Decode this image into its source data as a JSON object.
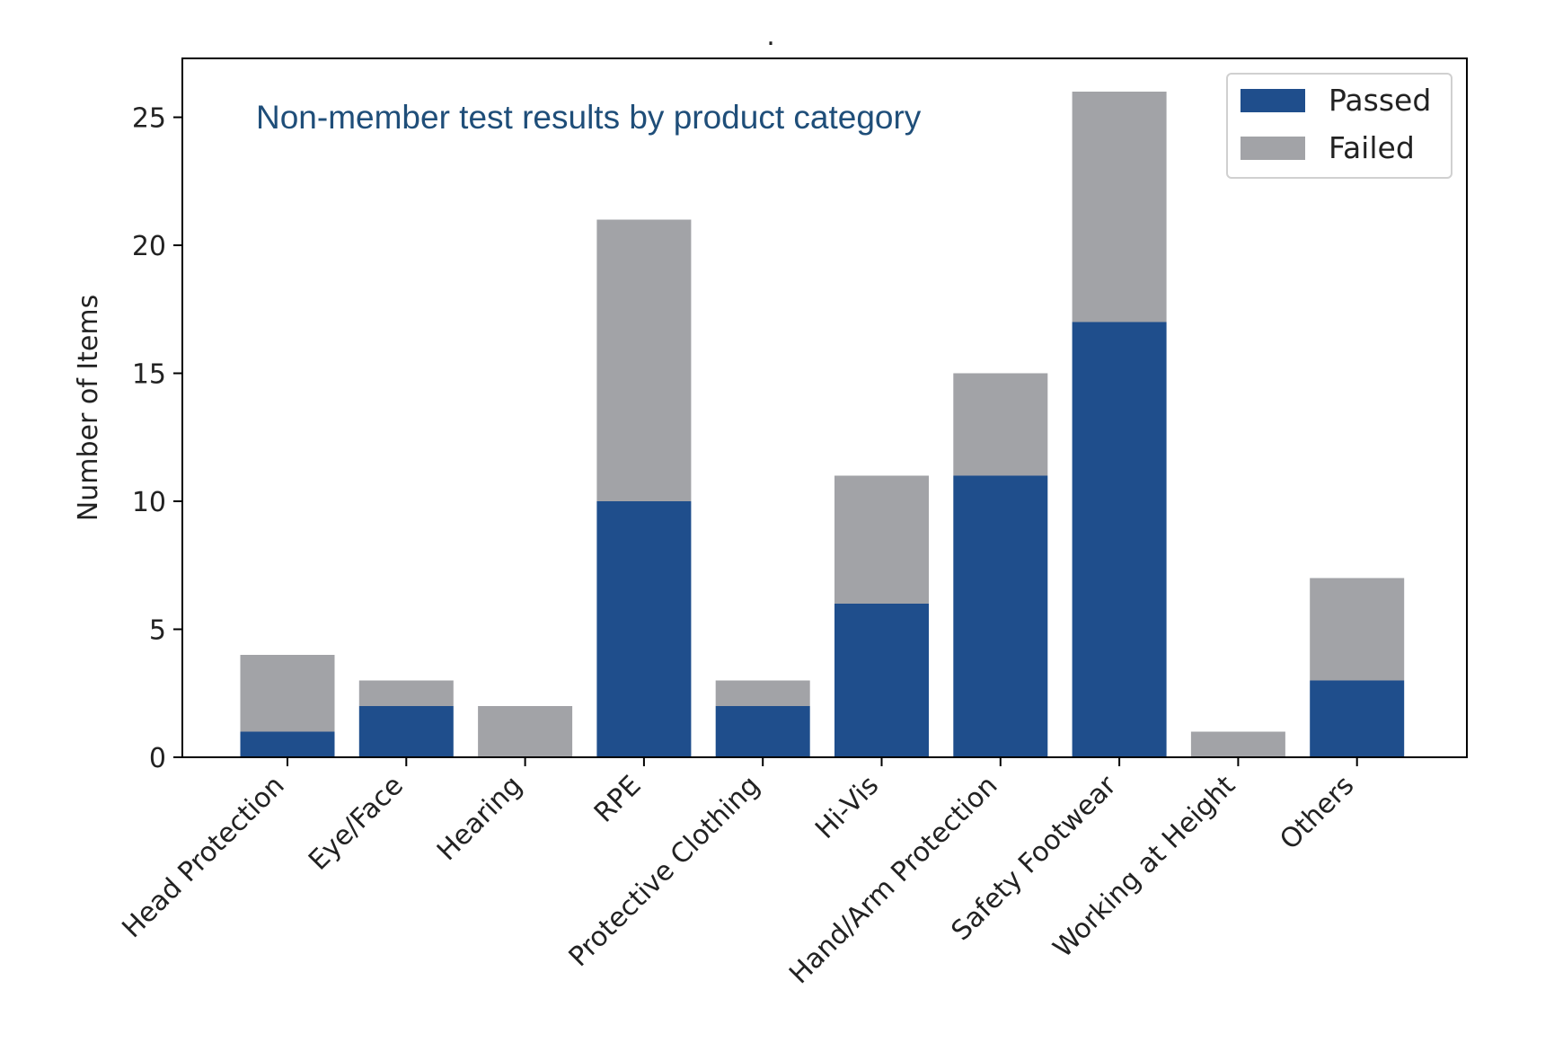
{
  "chart_data": {
    "type": "bar",
    "stacked": true,
    "title": ".",
    "annotation": "Non-member test results by product category",
    "xlabel": "",
    "ylabel": "Number of Items",
    "categories": [
      "Head Protection",
      "Eye/Face",
      "Hearing",
      "RPE",
      "Protective Clothing",
      "Hi-Vis",
      "Hand/Arm Protection",
      "Safety Footwear",
      "Working at Height",
      "Others"
    ],
    "series": [
      {
        "name": "Passed",
        "values": [
          1,
          2,
          0,
          10,
          2,
          6,
          11,
          17,
          0,
          3
        ],
        "color": "#1f4e8c"
      },
      {
        "name": "Failed",
        "values": [
          3,
          1,
          2,
          11,
          1,
          5,
          4,
          9,
          1,
          4
        ],
        "color": "#a2a3a7"
      }
    ],
    "ylim": [
      0,
      27.3
    ],
    "yticks": [
      0,
      5,
      10,
      15,
      20,
      25
    ],
    "grid": false,
    "legend_position": "top-right",
    "annotation_color": "#1f4e79"
  }
}
